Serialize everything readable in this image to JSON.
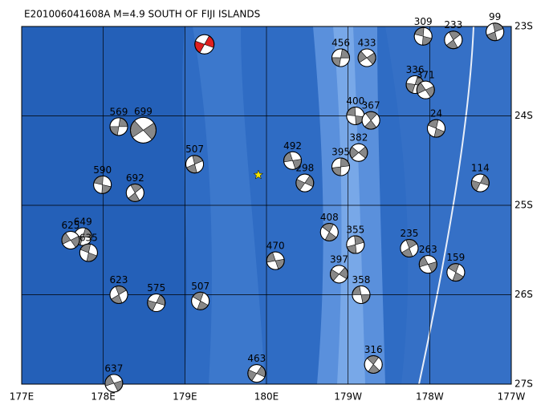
{
  "map": {
    "title": "E201006041608A M=4.9 SOUTH OF FIJI ISLANDS",
    "lon_ticks": [
      {
        "value": 177,
        "label": "177E"
      },
      {
        "value": 178,
        "label": "178E"
      },
      {
        "value": 179,
        "label": "179E"
      },
      {
        "value": 180,
        "label": "180E"
      },
      {
        "value": 181,
        "label": "179W"
      },
      {
        "value": 182,
        "label": "178W"
      },
      {
        "value": 183,
        "label": "177W"
      }
    ],
    "lat_ticks": [
      {
        "value": -23,
        "label": "23S"
      },
      {
        "value": -24,
        "label": "24S"
      },
      {
        "value": -25,
        "label": "25S"
      },
      {
        "value": -26,
        "label": "26S"
      },
      {
        "value": -27,
        "label": "27S"
      }
    ],
    "lonlim": [
      177,
      183
    ],
    "latlim": [
      -27,
      -23
    ],
    "highlight": {
      "lon": 179.24,
      "lat": -23.2,
      "color": "#e02020"
    },
    "star": {
      "lon": 179.9,
      "lat": -24.66,
      "color": "#f5e600"
    },
    "events": [
      {
        "depth": 569,
        "lon": 178.19,
        "lat": -24.12
      },
      {
        "depth": 699,
        "lon": 178.49,
        "lat": -24.16
      },
      {
        "depth": 590,
        "lon": 177.99,
        "lat": -24.77
      },
      {
        "depth": 692,
        "lon": 178.39,
        "lat": -24.86
      },
      {
        "depth": 649,
        "lon": 177.75,
        "lat": -25.35
      },
      {
        "depth": 625,
        "lon": 177.6,
        "lat": -25.39
      },
      {
        "depth": 635,
        "lon": 177.82,
        "lat": -25.53
      },
      {
        "depth": 623,
        "lon": 178.19,
        "lat": -26.0
      },
      {
        "depth": 575,
        "lon": 178.65,
        "lat": -26.09
      },
      {
        "depth": 637,
        "lon": 178.13,
        "lat": -26.99
      },
      {
        "depth": 507,
        "lon": 179.19,
        "lat": -26.07
      },
      {
        "depth": 507,
        "lon": 179.12,
        "lat": -24.54
      },
      {
        "depth": 463,
        "lon": 179.88,
        "lat": -26.88
      },
      {
        "depth": 470,
        "lon": 180.11,
        "lat": -25.62
      },
      {
        "depth": 408,
        "lon": 180.77,
        "lat": -25.3
      },
      {
        "depth": 355,
        "lon": 181.09,
        "lat": -25.44
      },
      {
        "depth": 397,
        "lon": 180.89,
        "lat": -25.77
      },
      {
        "depth": 358,
        "lon": 181.16,
        "lat": -26.0
      },
      {
        "depth": 316,
        "lon": 181.31,
        "lat": -26.78
      },
      {
        "depth": 395,
        "lon": 180.91,
        "lat": -24.57
      },
      {
        "depth": 382,
        "lon": 181.13,
        "lat": -24.41
      },
      {
        "depth": 400,
        "lon": 181.09,
        "lat": -24.0
      },
      {
        "depth": 367,
        "lon": 181.28,
        "lat": -24.05
      },
      {
        "depth": 456,
        "lon": 180.91,
        "lat": -23.35
      },
      {
        "depth": 433,
        "lon": 181.23,
        "lat": -23.35
      },
      {
        "depth": 309,
        "lon": 181.92,
        "lat": -23.11
      },
      {
        "depth": 233,
        "lon": 182.29,
        "lat": -23.15
      },
      {
        "depth": 336,
        "lon": 181.82,
        "lat": -23.65
      },
      {
        "depth": 371,
        "lon": 181.95,
        "lat": -23.71
      },
      {
        "depth": 24,
        "lon": 182.08,
        "lat": -24.14
      },
      {
        "depth": 235,
        "lon": 181.75,
        "lat": -25.48
      },
      {
        "depth": 114,
        "lon": 182.62,
        "lat": -24.75
      },
      {
        "depth": 263,
        "lon": 181.98,
        "lat": -25.66
      },
      {
        "depth": 159,
        "lon": 182.32,
        "lat": -25.75
      },
      {
        "depth": 99,
        "lon": 182.8,
        "lat": -23.06
      },
      {
        "depth": 298,
        "lon": 180.47,
        "lat": -24.75
      },
      {
        "depth": 492,
        "lon": 180.32,
        "lat": -24.5
      }
    ]
  }
}
